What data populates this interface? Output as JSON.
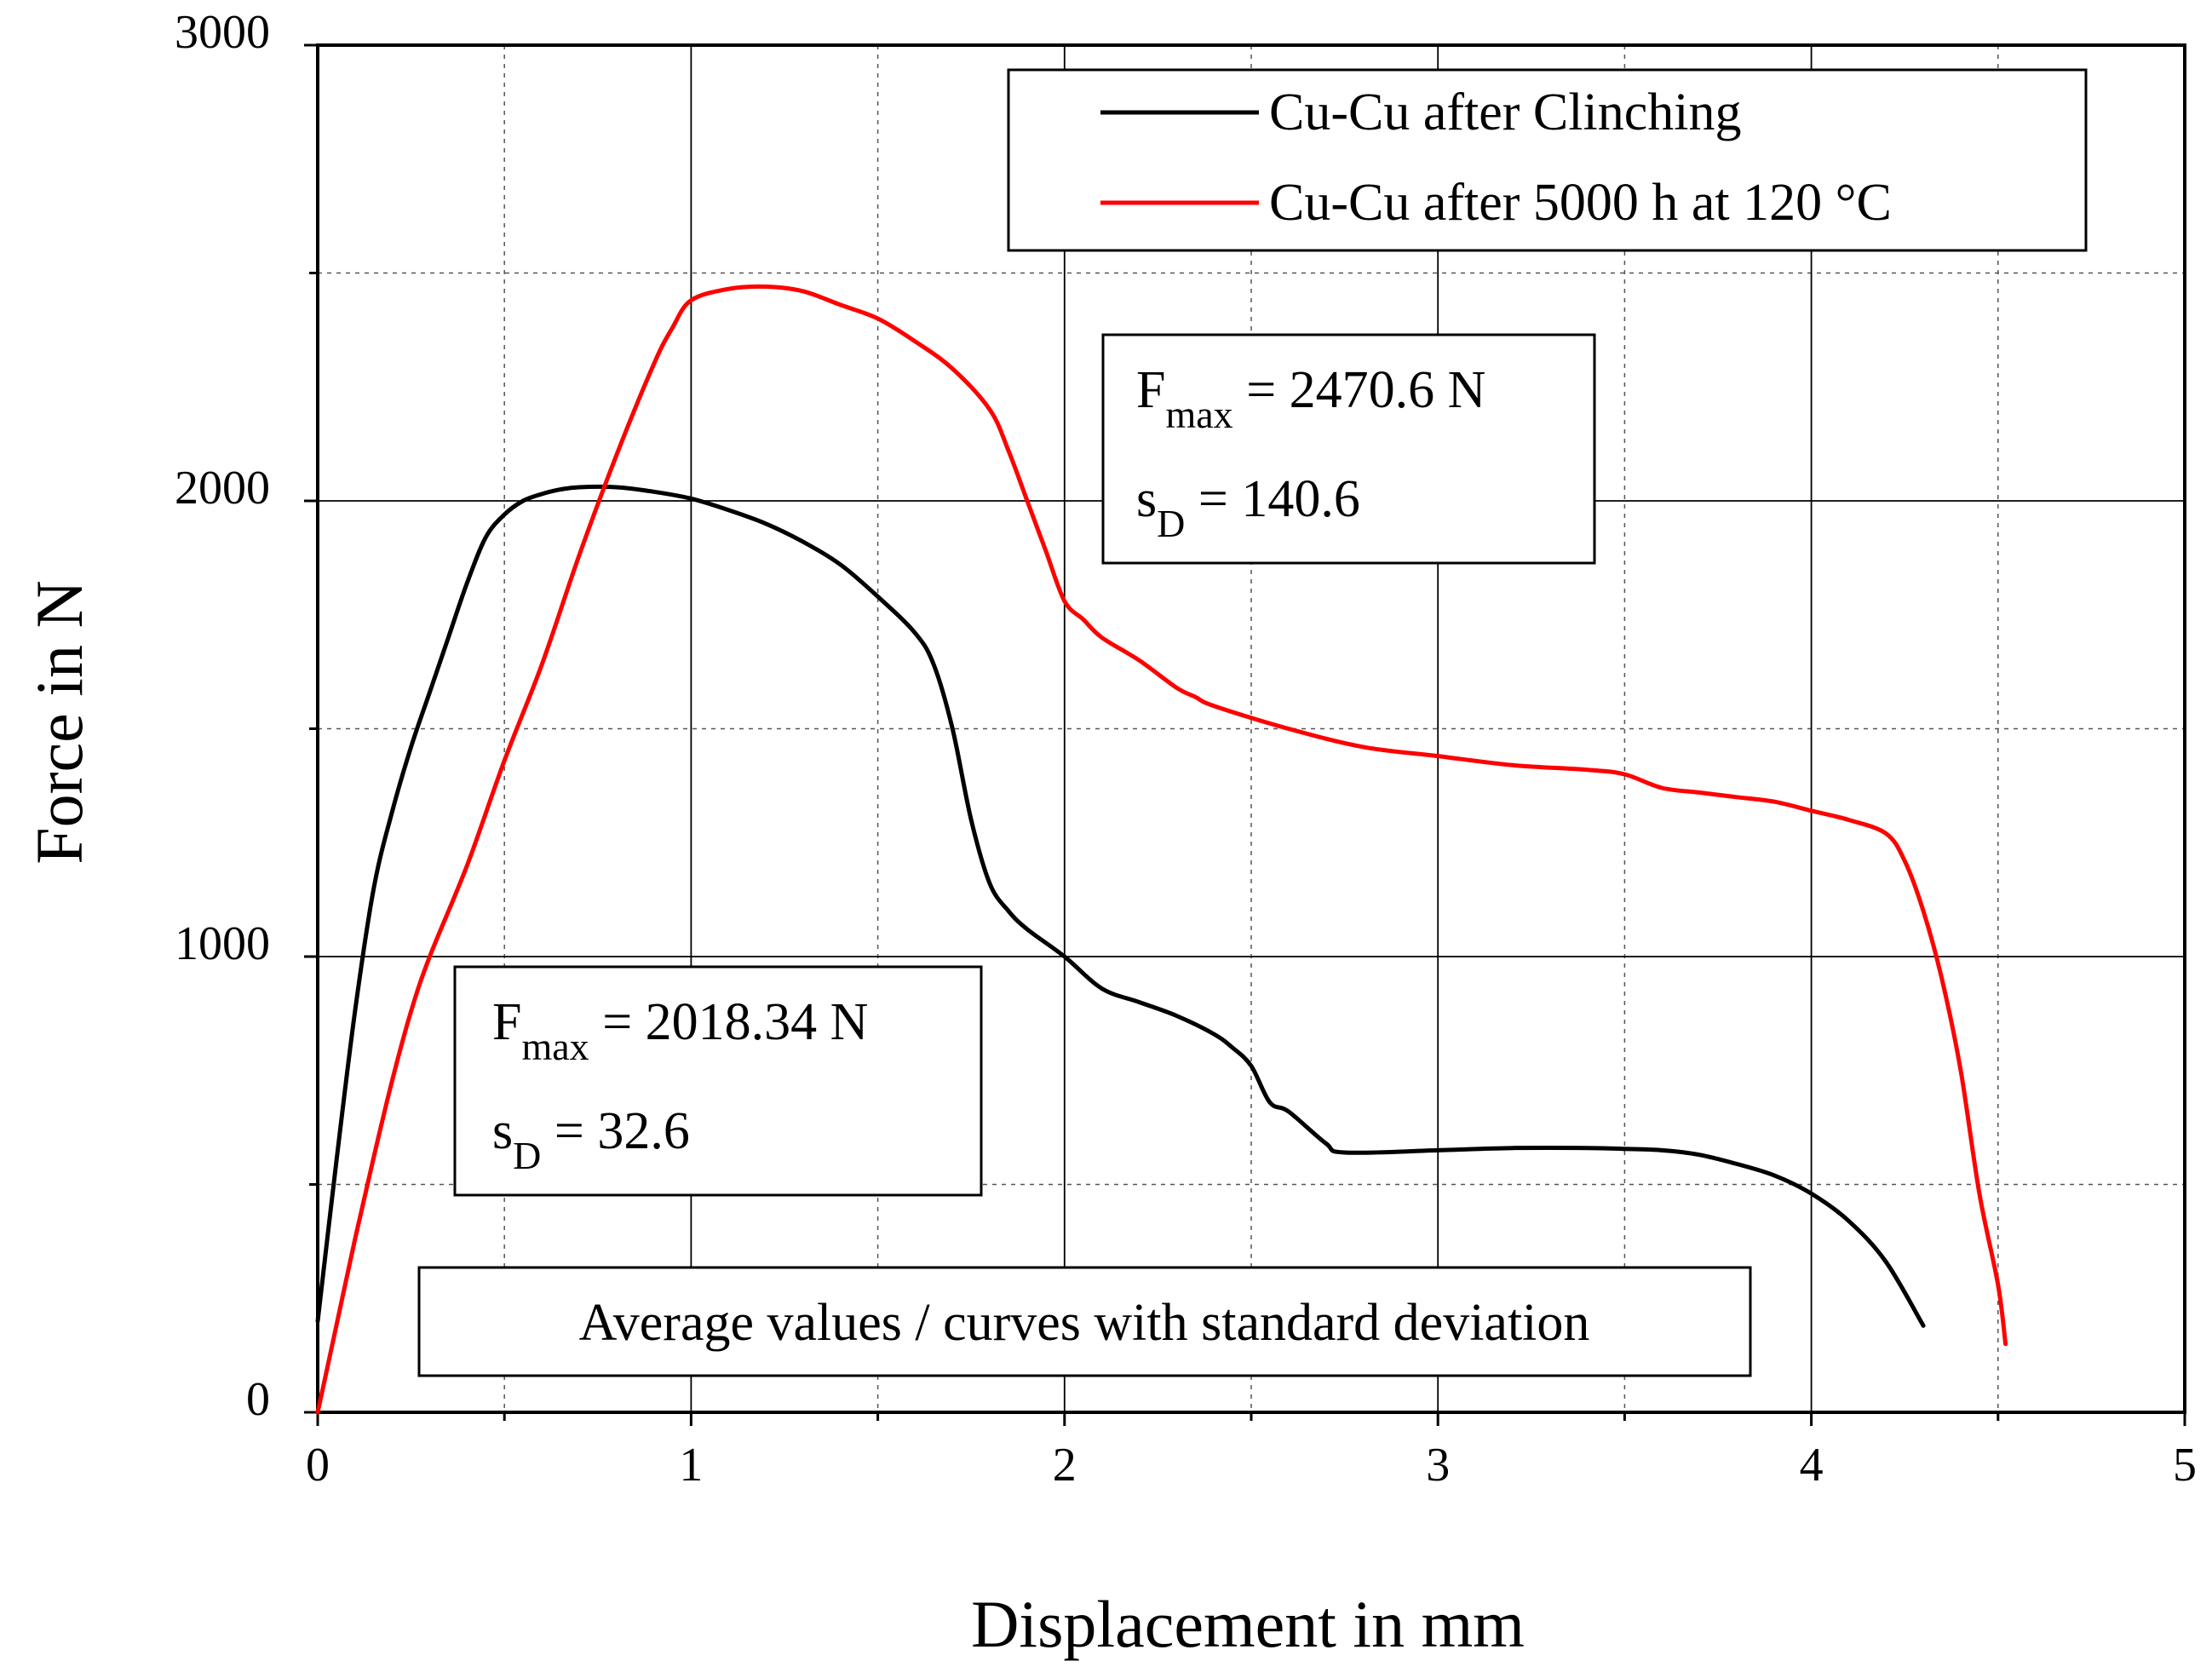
{
  "chart_data": {
    "type": "line",
    "title": "",
    "xlabel": "Displacement in mm",
    "ylabel": "Force in N",
    "xlim": [
      0,
      5
    ],
    "ylim": [
      0,
      3000
    ],
    "x_ticks": [
      0,
      1,
      2,
      3,
      4,
      5
    ],
    "x_tick_labels": [
      "0",
      "1",
      "2",
      "3",
      "4",
      "5"
    ],
    "y_ticks": [
      0,
      1000,
      2000,
      3000
    ],
    "y_tick_labels": [
      "0",
      "1000",
      "2000",
      "3000"
    ],
    "grid": "on",
    "legend_position": "top-right",
    "series": [
      {
        "name": "Cu-Cu after Clinching",
        "color": "#000000",
        "x": [
          0,
          0.05,
          0.1,
          0.15,
          0.2,
          0.25,
          0.3,
          0.35,
          0.4,
          0.45,
          0.5,
          0.55,
          0.6,
          0.65,
          0.7,
          0.8,
          0.9,
          1.0,
          1.1,
          1.2,
          1.3,
          1.4,
          1.5,
          1.6,
          1.65,
          1.7,
          1.75,
          1.8,
          1.85,
          1.9,
          2.0,
          2.1,
          2.2,
          2.3,
          2.4,
          2.45,
          2.5,
          2.55,
          2.6,
          2.7,
          2.75,
          3.0,
          3.2,
          3.4,
          3.5,
          3.6,
          3.7,
          3.8,
          3.9,
          4.0,
          4.1,
          4.2,
          4.3
        ],
        "y": [
          200,
          550,
          880,
          1150,
          1320,
          1460,
          1580,
          1700,
          1820,
          1920,
          1970,
          2000,
          2015,
          2025,
          2030,
          2030,
          2020,
          2005,
          1980,
          1950,
          1910,
          1860,
          1790,
          1710,
          1640,
          1500,
          1300,
          1160,
          1100,
          1060,
          1000,
          930,
          900,
          870,
          830,
          800,
          760,
          680,
          660,
          590,
          570,
          575,
          580,
          580,
          578,
          575,
          565,
          545,
          520,
          480,
          420,
          330,
          190
        ]
      },
      {
        "name": "Cu-Cu after 5000 h at 120 °C",
        "color": "#ff0000",
        "x": [
          0,
          0.05,
          0.1,
          0.15,
          0.2,
          0.25,
          0.3,
          0.4,
          0.5,
          0.6,
          0.7,
          0.8,
          0.9,
          0.95,
          1.0,
          1.1,
          1.2,
          1.3,
          1.4,
          1.5,
          1.6,
          1.7,
          1.8,
          1.85,
          1.9,
          1.95,
          2.0,
          2.05,
          2.1,
          2.2,
          2.3,
          2.35,
          2.4,
          2.6,
          2.8,
          3.0,
          3.2,
          3.4,
          3.5,
          3.6,
          3.7,
          3.8,
          3.9,
          4.0,
          4.1,
          4.2,
          4.25,
          4.3,
          4.35,
          4.4,
          4.45,
          4.5,
          4.52
        ],
        "y": [
          0,
          190,
          380,
          560,
          730,
          880,
          1000,
          1200,
          1430,
          1640,
          1880,
          2100,
          2300,
          2380,
          2440,
          2465,
          2470,
          2460,
          2430,
          2400,
          2350,
          2290,
          2200,
          2110,
          2000,
          1890,
          1780,
          1740,
          1700,
          1650,
          1590,
          1570,
          1550,
          1500,
          1460,
          1440,
          1420,
          1410,
          1400,
          1370,
          1360,
          1350,
          1340,
          1320,
          1300,
          1270,
          1210,
          1100,
          950,
          750,
          480,
          280,
          150
        ]
      }
    ],
    "annotations": [
      {
        "symbol": "F",
        "subscript": "max",
        "text": " = 2470.6 N"
      },
      {
        "symbol": "s",
        "subscript": "D",
        "text": " = 140.6"
      },
      {
        "symbol": "F",
        "subscript": "max",
        "text": " = 2018.34 N"
      },
      {
        "symbol": "s",
        "subscript": "D",
        "text": " = 32.6"
      },
      {
        "text": "Average values / curves with standard deviation"
      }
    ]
  }
}
